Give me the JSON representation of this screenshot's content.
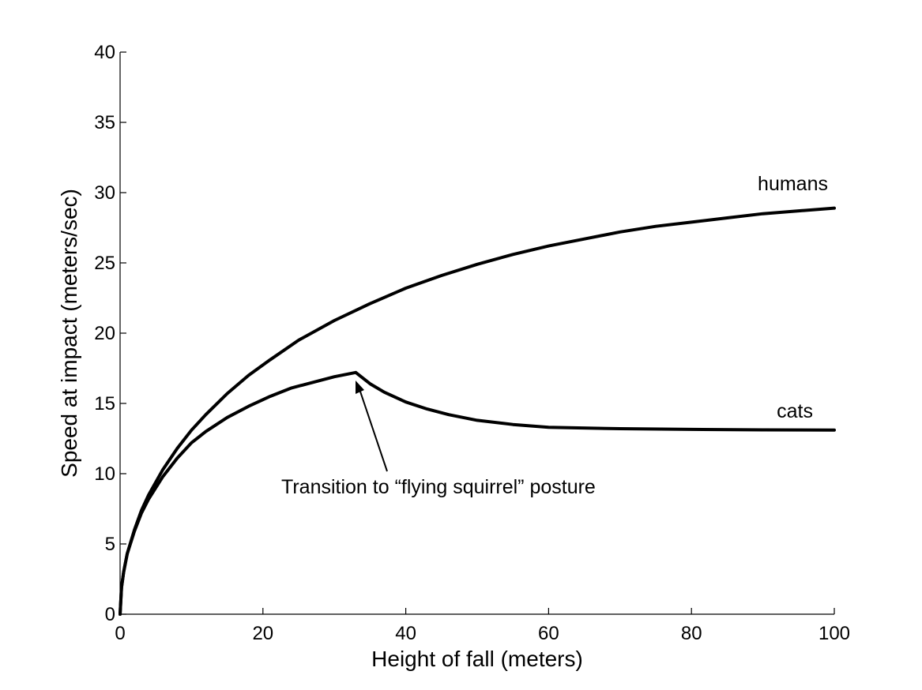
{
  "chart_data": {
    "type": "line",
    "title": "",
    "xlabel": "Height of fall (meters)",
    "ylabel": "Speed at impact (meters/sec)",
    "xlim": [
      0,
      100
    ],
    "ylim": [
      0,
      40
    ],
    "xticks": [
      0,
      20,
      40,
      60,
      80,
      100
    ],
    "yticks": [
      0,
      5,
      10,
      15,
      20,
      25,
      30,
      35,
      40
    ],
    "grid": false,
    "line_color": "#000000",
    "series": [
      {
        "name": "humans",
        "x": [
          0,
          0.2,
          0.5,
          1,
          2,
          3,
          4,
          6,
          8,
          10,
          12,
          15,
          18,
          21,
          25,
          30,
          35,
          40,
          45,
          50,
          55,
          60,
          65,
          70,
          75,
          80,
          85,
          90,
          95,
          100
        ],
        "y": [
          0,
          1.9,
          3.0,
          4.3,
          6.0,
          7.4,
          8.5,
          10.3,
          11.8,
          13.1,
          14.2,
          15.7,
          17.0,
          18.1,
          19.5,
          20.9,
          22.1,
          23.2,
          24.1,
          24.9,
          25.6,
          26.2,
          26.7,
          27.2,
          27.6,
          27.9,
          28.2,
          28.5,
          28.7,
          28.9
        ]
      },
      {
        "name": "cats",
        "x": [
          0,
          0.2,
          0.5,
          1,
          2,
          3,
          4,
          6,
          8,
          10,
          12,
          15,
          18,
          21,
          24,
          27,
          30,
          33,
          35,
          37,
          40,
          43,
          46,
          50,
          55,
          60,
          70,
          80,
          90,
          100
        ],
        "y": [
          0,
          1.9,
          3.0,
          4.3,
          5.9,
          7.2,
          8.2,
          9.8,
          11.1,
          12.2,
          13.0,
          14.0,
          14.8,
          15.5,
          16.1,
          16.5,
          16.9,
          17.2,
          16.4,
          15.8,
          15.1,
          14.6,
          14.2,
          13.8,
          13.5,
          13.3,
          13.2,
          13.15,
          13.12,
          13.1
        ]
      }
    ],
    "series_labels": [
      "humans",
      "cats"
    ],
    "annotation": {
      "text": "Transition to “flying squirrel” posture",
      "point_x": 33,
      "point_y": 17.2
    }
  }
}
